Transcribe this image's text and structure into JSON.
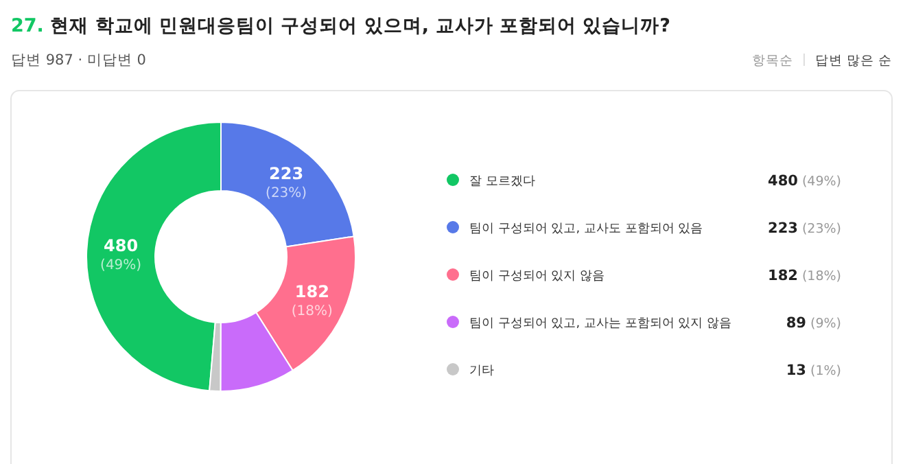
{
  "chart_data": {
    "type": "donut",
    "title": "27. 현재 학교에 민원대응팀이 구성되어 있으며, 교사가 포함되어 있습니까?",
    "subtitle": "답변 987 · 미답변 0",
    "annotations": [
      "항목순",
      "답변 많은 순"
    ],
    "categories": [
      "잘 모르겠다",
      "팀이 구성되어 있고, 교사도 포함되어 있음",
      "팀이 구성되어 있지 않음",
      "팀이 구성되어 있고, 교사는 포함되어 있지 않음",
      "기타"
    ],
    "values": [
      480,
      223,
      182,
      89,
      13
    ],
    "colors": [
      "#12c764",
      "#5779e8",
      "#ff6f8e",
      "#c96bfa",
      "#c8c8c8"
    ],
    "value_labels": [
      "480 (49%)",
      "223 (23%)",
      "182 (18%)",
      "89 (9%)",
      "13 (1%)"
    ],
    "legend": "right"
  }
}
